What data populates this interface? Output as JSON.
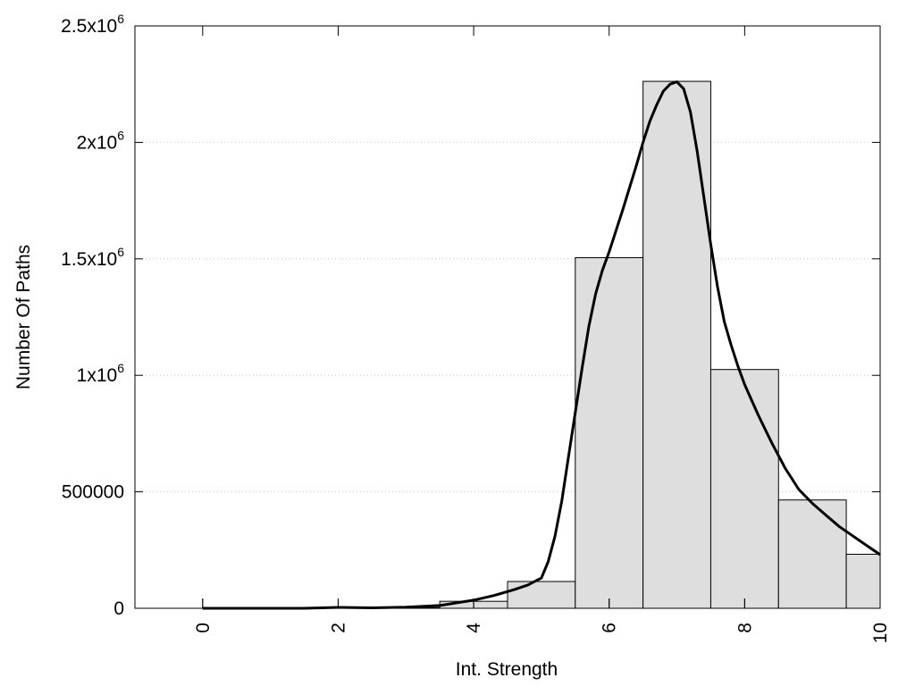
{
  "chart_data": {
    "type": "bar",
    "xlabel": "Int. Strength",
    "ylabel": "Number Of Paths",
    "xlim": [
      -1,
      10
    ],
    "ylim": [
      0,
      2500000
    ],
    "x_ticks": [
      "0",
      "2",
      "4",
      "6",
      "8",
      "10"
    ],
    "x_tick_values": [
      0,
      2,
      4,
      6,
      8,
      10
    ],
    "y_ticks": [
      {
        "value": 0,
        "base": "0",
        "exp": ""
      },
      {
        "value": 500000,
        "base": "500000",
        "exp": ""
      },
      {
        "value": 1000000,
        "base": "1x10",
        "exp": "6"
      },
      {
        "value": 1500000,
        "base": "1.5x10",
        "exp": "6"
      },
      {
        "value": 2000000,
        "base": "2x10",
        "exp": "6"
      },
      {
        "value": 2500000,
        "base": "2.5x10",
        "exp": "6"
      }
    ],
    "grid": "horizontal dotted",
    "bars": {
      "centers": [
        0,
        1,
        2,
        3,
        4,
        5,
        6,
        7,
        8,
        9,
        10
      ],
      "width": 1,
      "values": [
        0,
        0,
        2000,
        3000,
        30000,
        115000,
        1505000,
        2262000,
        1025000,
        465000,
        232000
      ]
    },
    "curve": {
      "type": "line",
      "x": [
        0,
        0.5,
        1,
        1.5,
        2,
        2.5,
        3,
        3.5,
        4,
        4.3,
        4.6,
        4.8,
        5,
        5.1,
        5.2,
        5.3,
        5.4,
        5.5,
        5.6,
        5.7,
        5.8,
        5.9,
        6,
        6.2,
        6.4,
        6.5,
        6.6,
        6.7,
        6.8,
        6.9,
        7,
        7.1,
        7.2,
        7.3,
        7.4,
        7.5,
        7.6,
        7.7,
        7.8,
        7.9,
        8,
        8.2,
        8.4,
        8.6,
        8.8,
        9,
        9.2,
        9.4,
        9.6,
        9.8,
        10
      ],
      "y": [
        0,
        0,
        0,
        0,
        4000,
        2000,
        5000,
        12000,
        35000,
        55000,
        80000,
        100000,
        130000,
        200000,
        310000,
        460000,
        650000,
        840000,
        1030000,
        1210000,
        1350000,
        1450000,
        1530000,
        1710000,
        1900000,
        2000000,
        2090000,
        2160000,
        2220000,
        2250000,
        2260000,
        2230000,
        2130000,
        1960000,
        1760000,
        1560000,
        1380000,
        1230000,
        1130000,
        1040000,
        960000,
        830000,
        710000,
        600000,
        510000,
        450000,
        400000,
        350000,
        310000,
        270000,
        230000
      ]
    }
  }
}
